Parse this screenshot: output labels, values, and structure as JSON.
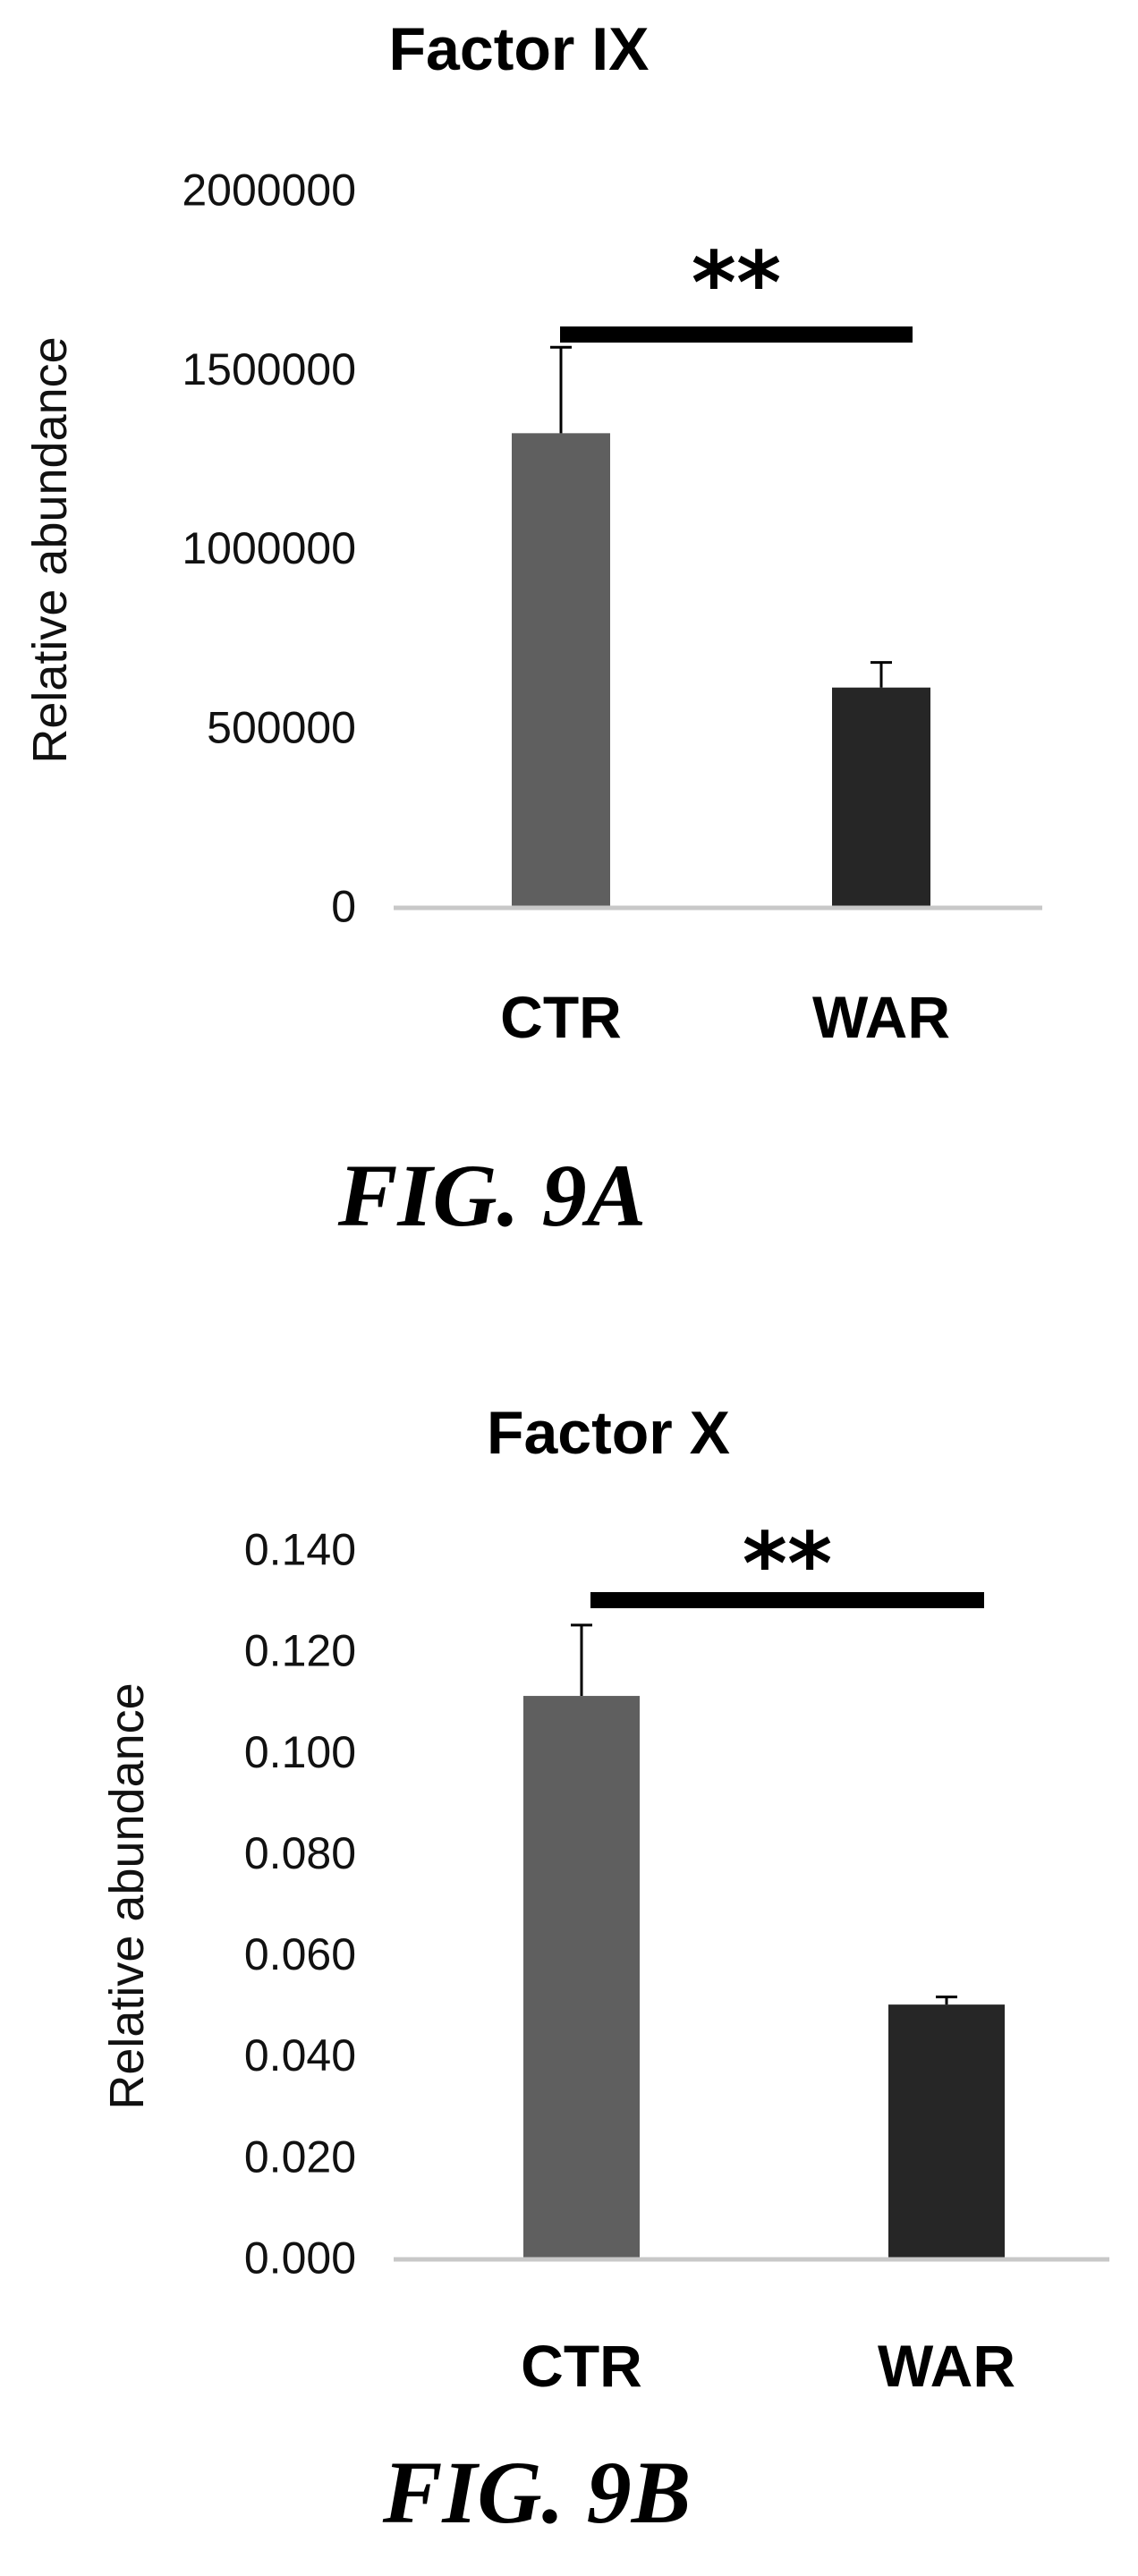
{
  "chart_data": [
    {
      "type": "bar",
      "title": "Factor IX",
      "ylabel": "Relative abundance",
      "xlabel": "",
      "categories": [
        "CTR",
        "WAR"
      ],
      "values": [
        1320000,
        610000
      ],
      "error": [
        240000,
        70000
      ],
      "ylim": [
        0,
        2000000
      ],
      "yticks": [
        "0",
        "500000",
        "1000000",
        "1500000",
        "2000000"
      ],
      "bar_colors": [
        "#5f5f5f",
        "#262626"
      ],
      "significance": "**",
      "grid": false,
      "legend": "none",
      "caption": "FIG. 9A"
    },
    {
      "type": "bar",
      "title": "Factor X",
      "ylabel": "Relative abundance",
      "xlabel": "",
      "categories": [
        "CTR",
        "WAR"
      ],
      "values": [
        0.111,
        0.05
      ],
      "error": [
        0.014,
        0.0015
      ],
      "ylim": [
        0,
        0.14
      ],
      "yticks": [
        "0.000",
        "0.020",
        "0.040",
        "0.060",
        "0.080",
        "0.100",
        "0.120",
        "0.140"
      ],
      "bar_colors": [
        "#5f5f5f",
        "#262626"
      ],
      "significance": "**",
      "grid": false,
      "legend": "none",
      "caption": "FIG. 9B"
    }
  ]
}
